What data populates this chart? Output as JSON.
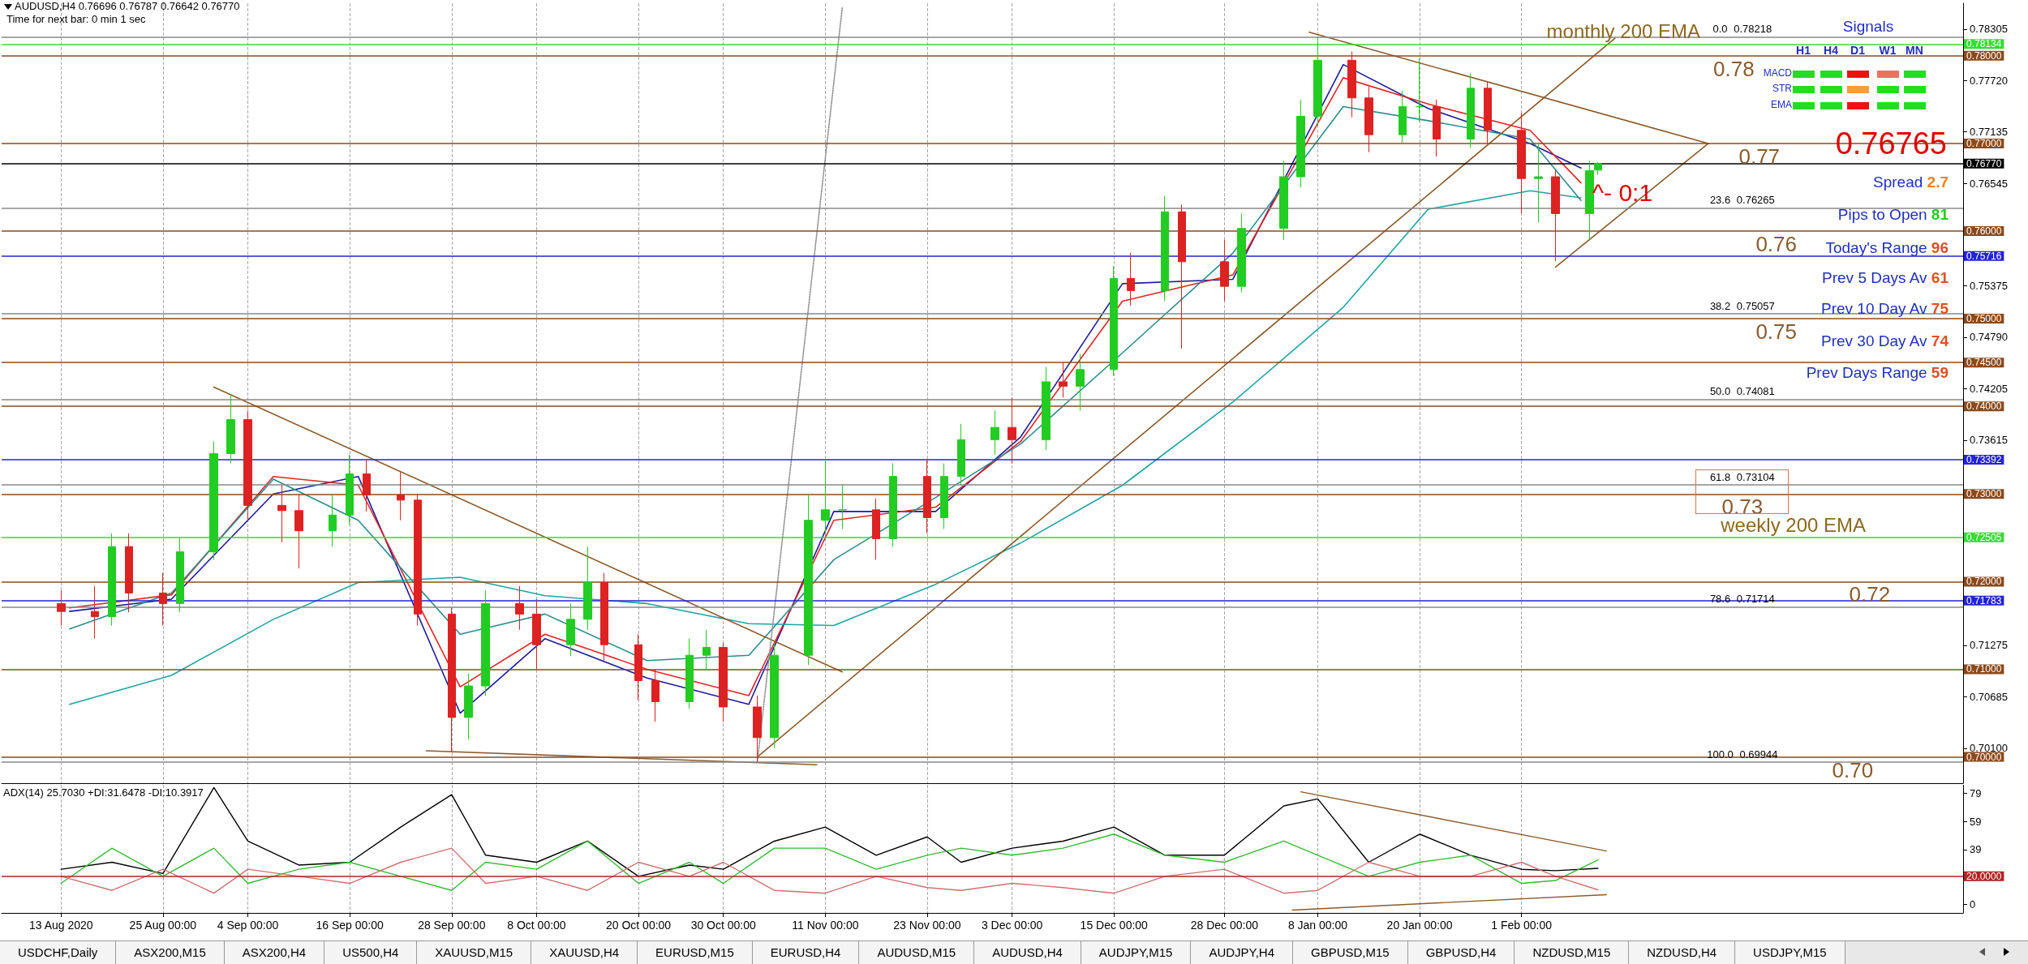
{
  "chart_data": [
    {
      "type": "candlestick",
      "title": "AUDUSD,H4  0.76696 0.76787 0.76642 0.76770",
      "x": [
        "2020-08-13",
        "2020-08-17",
        "2020-08-19",
        "2020-08-21",
        "2020-08-25",
        "2020-08-27",
        "2020-08-31",
        "2020-09-02",
        "2020-09-04",
        "2020-09-08",
        "2020-09-10",
        "2020-09-14",
        "2020-09-16",
        "2020-09-18",
        "2020-09-22",
        "2020-09-24",
        "2020-09-28",
        "2020-09-30",
        "2020-10-02",
        "2020-10-06",
        "2020-10-08",
        "2020-10-12",
        "2020-10-14",
        "2020-10-16",
        "2020-10-20",
        "2020-10-22",
        "2020-10-26",
        "2020-10-28",
        "2020-10-30",
        "2020-11-03",
        "2020-11-05",
        "2020-11-09",
        "2020-11-11",
        "2020-11-13",
        "2020-11-17",
        "2020-11-19",
        "2020-11-23",
        "2020-11-25",
        "2020-11-27",
        "2020-12-01",
        "2020-12-03",
        "2020-12-07",
        "2020-12-09",
        "2020-12-11",
        "2020-12-15",
        "2020-12-17",
        "2020-12-21",
        "2020-12-23",
        "2020-12-28",
        "2020-12-30",
        "2021-01-04",
        "2021-01-06",
        "2021-01-08",
        "2021-01-12",
        "2021-01-14",
        "2021-01-18",
        "2021-01-20",
        "2021-01-22",
        "2021-01-26",
        "2021-01-28",
        "2021-02-01",
        "2021-02-03",
        "2021-02-05",
        "2021-02-09",
        "2021-02-10"
      ],
      "ohlc": [
        [
          0.7175,
          0.719,
          0.715,
          0.7166
        ],
        [
          0.7166,
          0.7195,
          0.7135,
          0.716
        ],
        [
          0.716,
          0.7255,
          0.715,
          0.724
        ],
        [
          0.724,
          0.7255,
          0.7165,
          0.7187
        ],
        [
          0.7187,
          0.721,
          0.715,
          0.7175
        ],
        [
          0.7175,
          0.725,
          0.7165,
          0.7234
        ],
        [
          0.7234,
          0.736,
          0.7225,
          0.7346
        ],
        [
          0.7346,
          0.7413,
          0.7335,
          0.7385
        ],
        [
          0.7385,
          0.7395,
          0.727,
          0.7287
        ],
        [
          0.7287,
          0.731,
          0.7245,
          0.7281
        ],
        [
          0.7281,
          0.73,
          0.7215,
          0.7258
        ],
        [
          0.7258,
          0.73,
          0.724,
          0.7276
        ],
        [
          0.7276,
          0.7345,
          0.7265,
          0.7323
        ],
        [
          0.7323,
          0.734,
          0.728,
          0.7299
        ],
        [
          0.7299,
          0.7325,
          0.727,
          0.7293
        ],
        [
          0.7293,
          0.73,
          0.715,
          0.7163
        ],
        [
          0.7163,
          0.717,
          0.7006,
          0.7045
        ],
        [
          0.7045,
          0.7095,
          0.702,
          0.7081
        ],
        [
          0.7081,
          0.719,
          0.707,
          0.7175
        ],
        [
          0.7175,
          0.7195,
          0.7145,
          0.7163
        ],
        [
          0.7163,
          0.718,
          0.71,
          0.7128
        ],
        [
          0.7128,
          0.7175,
          0.7115,
          0.7157
        ],
        [
          0.7157,
          0.724,
          0.7145,
          0.7199
        ],
        [
          0.7199,
          0.721,
          0.711,
          0.7128
        ],
        [
          0.7128,
          0.714,
          0.7065,
          0.7087
        ],
        [
          0.7087,
          0.71,
          0.704,
          0.7063
        ],
        [
          0.7063,
          0.7135,
          0.7055,
          0.7116
        ],
        [
          0.7116,
          0.7145,
          0.71,
          0.7125
        ],
        [
          0.7125,
          0.713,
          0.704,
          0.7057
        ],
        [
          0.7057,
          0.707,
          0.69944,
          0.7022
        ],
        [
          0.7022,
          0.713,
          0.701,
          0.7116
        ],
        [
          0.7116,
          0.73,
          0.7105,
          0.727
        ],
        [
          0.727,
          0.734,
          0.7255,
          0.7282
        ],
        [
          0.7282,
          0.731,
          0.726,
          0.7282
        ],
        [
          0.7282,
          0.7295,
          0.7225,
          0.7249
        ],
        [
          0.7249,
          0.7335,
          0.724,
          0.732
        ],
        [
          0.732,
          0.734,
          0.7255,
          0.7273
        ],
        [
          0.7273,
          0.7335,
          0.726,
          0.732
        ],
        [
          0.732,
          0.738,
          0.731,
          0.7362
        ],
        [
          0.7362,
          0.7395,
          0.7345,
          0.7376
        ],
        [
          0.7376,
          0.741,
          0.7335,
          0.7362
        ],
        [
          0.7362,
          0.7445,
          0.735,
          0.7428
        ],
        [
          0.7428,
          0.745,
          0.741,
          0.7423
        ],
        [
          0.7423,
          0.746,
          0.7395,
          0.7442
        ],
        [
          0.7442,
          0.756,
          0.7435,
          0.7546
        ],
        [
          0.7546,
          0.7575,
          0.7515,
          0.7532
        ],
        [
          0.7532,
          0.764,
          0.752,
          0.7622
        ],
        [
          0.7622,
          0.763,
          0.7466,
          0.7565
        ],
        [
          0.7565,
          0.759,
          0.752,
          0.7537
        ],
        [
          0.7537,
          0.762,
          0.753,
          0.7603
        ],
        [
          0.7603,
          0.768,
          0.759,
          0.7662
        ],
        [
          0.7662,
          0.775,
          0.765,
          0.7731
        ],
        [
          0.7731,
          0.78218,
          0.772,
          0.7795
        ],
        [
          0.7795,
          0.7805,
          0.773,
          0.7752
        ],
        [
          0.7752,
          0.7765,
          0.769,
          0.771
        ],
        [
          0.771,
          0.776,
          0.77,
          0.7742
        ],
        [
          0.7742,
          0.7797,
          0.7725,
          0.7742
        ],
        [
          0.7742,
          0.775,
          0.7685,
          0.7705
        ],
        [
          0.7705,
          0.778,
          0.7695,
          0.7763
        ],
        [
          0.7763,
          0.777,
          0.77,
          0.7715
        ],
        [
          0.7715,
          0.7735,
          0.762,
          0.766
        ],
        [
          0.766,
          0.77,
          0.761,
          0.7662
        ],
        [
          0.7662,
          0.767,
          0.7566,
          0.762
        ],
        [
          0.762,
          0.768,
          0.759,
          0.7669
        ],
        [
          0.76696,
          0.76787,
          0.76642,
          0.7677
        ]
      ],
      "colors": [
        "#dd2222",
        "#dd2222",
        "#22cc22",
        "#dd2222",
        "#dd2222",
        "#22cc22",
        "#22cc22",
        "#22cc22",
        "#dd2222",
        "#dd2222",
        "#dd2222",
        "#22cc22",
        "#22cc22",
        "#dd2222",
        "#dd2222",
        "#dd2222",
        "#dd2222",
        "#22cc22",
        "#22cc22",
        "#dd2222",
        "#dd2222",
        "#22cc22",
        "#22cc22",
        "#dd2222",
        "#dd2222",
        "#dd2222",
        "#22cc22",
        "#22cc22",
        "#dd2222",
        "#dd2222",
        "#22cc22",
        "#22cc22",
        "#22cc22",
        "#22cc22",
        "#dd2222",
        "#22cc22",
        "#dd2222",
        "#22cc22",
        "#22cc22",
        "#22cc22",
        "#dd2222",
        "#22cc22",
        "#dd2222",
        "#22cc22",
        "#22cc22",
        "#dd2222",
        "#22cc22",
        "#dd2222",
        "#dd2222",
        "#22cc22",
        "#22cc22",
        "#22cc22",
        "#22cc22",
        "#dd2222",
        "#dd2222",
        "#22cc22",
        "#22cc22",
        "#dd2222",
        "#22cc22",
        "#dd2222",
        "#dd2222",
        "#22cc22",
        "#dd2222",
        "#22cc22",
        "#22cc22"
      ],
      "series": [
        {
          "type": "line",
          "color": "#1c1c9c",
          "x": [
            "2020-08-14",
            "2020-08-26",
            "2020-09-07",
            "2020-09-17",
            "2020-09-29",
            "2020-10-09",
            "2020-10-21",
            "2020-11-02",
            "2020-11-12",
            "2020-11-24",
            "2020-12-04",
            "2020-12-16",
            "2020-12-29",
            "2021-01-11",
            "2021-01-21",
            "2021-02-02",
            "2021-02-08"
          ],
          "values": [
            0.7166,
            0.718,
            0.73,
            0.732,
            0.705,
            0.7135,
            0.709,
            0.706,
            0.728,
            0.728,
            0.7365,
            0.754,
            0.7545,
            0.779,
            0.774,
            0.77,
            0.7672
          ]
        },
        {
          "type": "line",
          "color": "#e02424",
          "x": [
            "2020-08-14",
            "2020-08-26",
            "2020-09-07",
            "2020-09-17",
            "2020-09-29",
            "2020-10-09",
            "2020-10-21",
            "2020-11-02",
            "2020-11-12",
            "2020-11-24",
            "2020-12-04",
            "2020-12-16",
            "2020-12-29",
            "2021-01-11",
            "2021-01-21",
            "2021-02-02",
            "2021-02-08"
          ],
          "values": [
            0.717,
            0.7185,
            0.732,
            0.731,
            0.708,
            0.714,
            0.71,
            0.707,
            0.727,
            0.7285,
            0.736,
            0.752,
            0.755,
            0.7775,
            0.7745,
            0.7715,
            0.7655
          ]
        },
        {
          "type": "line",
          "color": "#2b8c8c",
          "x": [
            "2020-08-14",
            "2020-08-26",
            "2020-09-07",
            "2020-09-17",
            "2020-09-29",
            "2020-10-09",
            "2020-10-21",
            "2020-11-02",
            "2020-11-12",
            "2020-11-24",
            "2020-12-04",
            "2020-12-16",
            "2020-12-29",
            "2021-01-11",
            "2021-01-21",
            "2021-02-02",
            "2021-02-08"
          ],
          "values": [
            0.7146,
            0.7187,
            0.7317,
            0.727,
            0.714,
            0.7163,
            0.711,
            0.7116,
            0.7225,
            0.7296,
            0.7357,
            0.7461,
            0.7575,
            0.7742,
            0.7726,
            0.7705,
            0.7635
          ]
        },
        {
          "type": "line",
          "color": "#1fa3a3",
          "x": [
            "2020-08-14",
            "2020-08-26",
            "2020-09-07",
            "2020-09-17",
            "2020-09-29",
            "2020-10-09",
            "2020-10-21",
            "2020-11-02",
            "2020-11-12",
            "2020-11-24",
            "2020-12-04",
            "2020-12-16",
            "2020-12-29",
            "2021-01-11",
            "2021-01-21",
            "2021-02-02",
            "2021-02-08"
          ],
          "values": [
            0.706,
            0.7093,
            0.7157,
            0.7199,
            0.7205,
            0.7184,
            0.7175,
            0.7152,
            0.715,
            0.7197,
            0.7244,
            0.731,
            0.7405,
            0.7513,
            0.7625,
            0.7646,
            0.7638
          ]
        },
        {
          "type": "line",
          "color": "#8b5a2b",
          "x": [
            "2020-08-31",
            "2020-11-13"
          ],
          "values": [
            0.7422,
            0.7097
          ]
        },
        {
          "type": "line",
          "color": "#8b5a2b",
          "x": [
            "2020-09-25",
            "2020-11-10"
          ],
          "values": [
            0.7007,
            0.6991
          ]
        },
        {
          "type": "line",
          "color": "#8b5a2b",
          "x": [
            "2020-11-03",
            "2021-02-12"
          ],
          "values": [
            0.7,
            0.782
          ]
        },
        {
          "type": "line",
          "color": "#8b5a2b",
          "x": [
            "2021-01-07",
            "2021-02-23"
          ],
          "values": [
            0.7827,
            0.77
          ]
        },
        {
          "type": "line",
          "color": "#8b5a2b",
          "x": [
            "2021-02-05",
            "2021-02-23"
          ],
          "values": [
            0.7559,
            0.77
          ]
        },
        {
          "type": "line",
          "color": "#909090",
          "line_style": "dotted",
          "x": [
            "2020-11-03",
            "2020-11-13"
          ],
          "values": [
            0.69944,
            0.7855
          ]
        }
      ],
      "xlim": [
        "2020-08-06",
        "2021-03-25"
      ],
      "xticks": [
        {
          "value": "2020-08-13",
          "label": null
        },
        {
          "value": "2020-08-25",
          "label": null
        },
        {
          "value": "2020-09-04",
          "label": null
        },
        {
          "value": "2020-09-16",
          "label": null
        },
        {
          "value": "2020-09-28",
          "label": null
        },
        {
          "value": "2020-10-08",
          "label": null
        },
        {
          "value": "2020-10-20",
          "label": null
        },
        {
          "value": "2020-10-30",
          "label": null
        },
        {
          "value": "2020-11-11",
          "label": null
        },
        {
          "value": "2020-11-23",
          "label": null
        },
        {
          "value": "2020-12-03",
          "label": null
        },
        {
          "value": "2020-12-15",
          "label": null
        },
        {
          "value": "2020-12-28",
          "label": null
        },
        {
          "value": "2021-01-08",
          "label": null
        },
        {
          "value": "2021-01-20",
          "label": null
        },
        {
          "value": "2021-02-01",
          "label": null
        }
      ],
      "ylim": [
        0.697,
        0.786
      ],
      "yticks": [
        {
          "value": 0.701,
          "label": "0.70100"
        },
        {
          "value": 0.70685,
          "label": "0.70685"
        },
        {
          "value": 0.71275,
          "label": "0.71275"
        },
        {
          "value": 0.73615,
          "label": "0.73615"
        },
        {
          "value": 0.74205,
          "label": "0.74205"
        },
        {
          "value": 0.7479,
          "label": "0.74790"
        },
        {
          "value": 0.75375,
          "label": "0.75375"
        },
        {
          "value": 0.76545,
          "label": "0.76545"
        },
        {
          "value": 0.77135,
          "label": "0.77135"
        },
        {
          "value": 0.7772,
          "label": "0.77720"
        },
        {
          "value": 0.78305,
          "label": "0.78305"
        }
      ],
      "ref_lines": [
        {
          "axis": "y",
          "value": 0.78,
          "label": "0.78000",
          "color": "#8b4a1c"
        },
        {
          "axis": "y",
          "value": 0.77,
          "label": "0.77000",
          "color": "#8b4a1c"
        },
        {
          "axis": "y",
          "value": 0.76,
          "label": "0.76000",
          "color": "#8b4a1c"
        },
        {
          "axis": "y",
          "value": 0.75,
          "label": "0.75000",
          "color": "#8b4a1c"
        },
        {
          "axis": "y",
          "value": 0.745,
          "label": "0.74500",
          "color": "#8b4a1c"
        },
        {
          "axis": "y",
          "value": 0.74,
          "label": "0.74000",
          "color": "#8b4a1c"
        },
        {
          "axis": "y",
          "value": 0.73,
          "label": "0.73000",
          "color": "#8b4a1c"
        },
        {
          "axis": "y",
          "value": 0.72,
          "label": "0.72000",
          "color": "#8b4a1c"
        },
        {
          "axis": "y",
          "value": 0.71,
          "label": "0.71000",
          "color": "#8b4a1c"
        },
        {
          "axis": "y",
          "value": 0.7,
          "label": "0.70000",
          "color": "#8b4a1c"
        },
        {
          "axis": "y",
          "value": 0.75716,
          "label": "0.75716",
          "color": "#2323d6"
        },
        {
          "axis": "y",
          "value": 0.73392,
          "label": "0.73392",
          "color": "#2323d6"
        },
        {
          "axis": "y",
          "value": 0.71783,
          "label": "0.71783",
          "color": "#2323d6"
        },
        {
          "axis": "y",
          "value": 0.78134,
          "label": "0.78134",
          "color": "#33dd33"
        },
        {
          "axis": "y",
          "value": 0.72505,
          "label": "0.72505",
          "color": "#33dd33"
        },
        {
          "axis": "y",
          "value": 0.7677,
          "label": "0.76770",
          "color": "#000000"
        },
        {
          "axis": "y",
          "value": 0.78218,
          "color": "#888888"
        },
        {
          "axis": "y",
          "value": 0.76265,
          "color": "#888888"
        },
        {
          "axis": "y",
          "value": 0.75057,
          "color": "#888888"
        },
        {
          "axis": "y",
          "value": 0.74081,
          "color": "#888888"
        },
        {
          "axis": "y",
          "value": 0.73104,
          "color": "#888888"
        },
        {
          "axis": "y",
          "value": 0.71714,
          "color": "#888888"
        },
        {
          "axis": "y",
          "value": 0.69944,
          "color": "#888888"
        }
      ],
      "annotations": [
        "Time for next bar: 0 min 1 sec",
        {
          "text": "monthly 200 EMA",
          "x": "2021-02-13",
          "y": 0.78134
        },
        {
          "text": "0.78",
          "x": "2021-02-26",
          "y": 0.78
        },
        {
          "text": "0.77",
          "x": "2021-03-01",
          "y": 0.77
        },
        {
          "text": "0.76",
          "x": "2021-03-03",
          "y": 0.76
        },
        {
          "text": "0.75",
          "x": "2021-03-03",
          "y": 0.75
        },
        {
          "text": "0.73",
          "x": "2021-02-27",
          "y": 0.73
        },
        {
          "text": "weekly 200 EMA",
          "x": "2021-03-05",
          "y": 0.72505
        },
        {
          "text": "0.72",
          "x": "2021-03-14",
          "y": 0.72
        },
        {
          "text": "0.70",
          "x": "2021-03-12",
          "y": 0.7
        },
        {
          "text": "0.0 0.78218",
          "x": "2021-02-27",
          "y": 0.78218
        },
        {
          "text": "23.6 0.76265",
          "x": "2021-02-27",
          "y": 0.76265
        },
        {
          "text": "38.2 0.75057",
          "x": "2021-02-27",
          "y": 0.75057
        },
        {
          "text": "50.0 0.74081",
          "x": "2021-02-27",
          "y": 0.74081
        },
        {
          "text": "61.8 0.73104",
          "x": "2021-02-27",
          "y": 0.73104
        },
        {
          "text": "78.6 0.71714",
          "x": "2021-02-27",
          "y": 0.71714
        },
        {
          "text": "100.0 0.69944",
          "x": "2021-02-27",
          "y": 0.69944
        },
        "0.76765",
        "^- 0:1",
        "Signals",
        "H1",
        "H4",
        "D1",
        "W1",
        "MN",
        "MACD",
        "STR",
        "EMA",
        "Spread 2.7",
        "Pips to Open 81",
        "Today's Range 96",
        "Prev 5 Days Av 61",
        "Prev 10 Day Av 75",
        "Prev 30 Day Av 74",
        "Prev Days Range 59"
      ],
      "grid": "x",
      "marker": "none",
      "tick_labels": "y"
    },
    {
      "type": "line",
      "title": "ADX(14) 25.7030 +DI:31.6478 -DI:10.3917",
      "series": [
        {
          "color": "#000000",
          "x": [
            "2020-08-13",
            "2020-08-19",
            "2020-08-25",
            "2020-08-31",
            "2020-09-04",
            "2020-09-10",
            "2020-09-16",
            "2020-09-22",
            "2020-09-28",
            "2020-10-02",
            "2020-10-08",
            "2020-10-14",
            "2020-10-20",
            "2020-10-26",
            "2020-10-30",
            "2020-11-05",
            "2020-11-11",
            "2020-11-17",
            "2020-11-23",
            "2020-11-27",
            "2020-12-03",
            "2020-12-09",
            "2020-12-15",
            "2020-12-21",
            "2020-12-28",
            "2021-01-04",
            "2021-01-08",
            "2021-01-14",
            "2021-01-20",
            "2021-01-26",
            "2021-02-01",
            "2021-02-05",
            "2021-02-10"
          ],
          "values": [
            25,
            30,
            22,
            83,
            45,
            28,
            30,
            55,
            78,
            35,
            30,
            45,
            20,
            28,
            25,
            45,
            55,
            35,
            48,
            30,
            40,
            45,
            55,
            35,
            35,
            70,
            75,
            30,
            50,
            35,
            25,
            24,
            25.703
          ]
        },
        {
          "color": "#33bb33",
          "x": [
            "2020-08-13",
            "2020-08-19",
            "2020-08-25",
            "2020-08-31",
            "2020-09-04",
            "2020-09-10",
            "2020-09-16",
            "2020-09-22",
            "2020-09-28",
            "2020-10-02",
            "2020-10-08",
            "2020-10-14",
            "2020-10-20",
            "2020-10-26",
            "2020-10-30",
            "2020-11-05",
            "2020-11-11",
            "2020-11-17",
            "2020-11-23",
            "2020-11-27",
            "2020-12-03",
            "2020-12-09",
            "2020-12-15",
            "2020-12-21",
            "2020-12-28",
            "2021-01-04",
            "2021-01-08",
            "2021-01-14",
            "2021-01-20",
            "2021-01-26",
            "2021-02-01",
            "2021-02-05",
            "2021-02-10"
          ],
          "values": [
            15,
            40,
            20,
            40,
            15,
            25,
            30,
            20,
            10,
            30,
            25,
            45,
            15,
            30,
            15,
            40,
            40,
            25,
            35,
            40,
            35,
            40,
            50,
            35,
            30,
            45,
            35,
            20,
            30,
            35,
            15,
            17,
            31.6478
          ]
        },
        {
          "color": "#d07070",
          "x": [
            "2020-08-13",
            "2020-08-19",
            "2020-08-25",
            "2020-08-31",
            "2020-09-04",
            "2020-09-10",
            "2020-09-16",
            "2020-09-22",
            "2020-09-28",
            "2020-10-02",
            "2020-10-08",
            "2020-10-14",
            "2020-10-20",
            "2020-10-26",
            "2020-10-30",
            "2020-11-05",
            "2020-11-11",
            "2020-11-17",
            "2020-11-23",
            "2020-11-27",
            "2020-12-03",
            "2020-12-09",
            "2020-12-15",
            "2020-12-21",
            "2020-12-28",
            "2021-01-04",
            "2021-01-08",
            "2021-01-14",
            "2021-01-20",
            "2021-01-26",
            "2021-02-01",
            "2021-02-05",
            "2021-02-10"
          ],
          "values": [
            20,
            10,
            25,
            8,
            25,
            20,
            15,
            30,
            40,
            15,
            20,
            10,
            30,
            20,
            30,
            10,
            8,
            20,
            12,
            10,
            15,
            12,
            8,
            20,
            25,
            8,
            10,
            30,
            20,
            20,
            30,
            20,
            10.3917
          ]
        },
        {
          "color": "#8b5a2b",
          "x": [
            "2021-01-06",
            "2021-02-11"
          ],
          "values": [
            80,
            38
          ]
        },
        {
          "color": "#8b5a2b",
          "x": [
            "2021-01-05",
            "2021-02-11"
          ],
          "values": [
            -4,
            7
          ]
        }
      ],
      "xlim": [
        "2020-08-06",
        "2021-03-25"
      ],
      "xticks": [
        {
          "value": "2020-08-13",
          "label": "13 Aug 2020"
        },
        {
          "value": "2020-08-25",
          "label": "25 Aug 00:00"
        },
        {
          "value": "2020-09-04",
          "label": "4 Sep 00:00"
        },
        {
          "value": "2020-09-16",
          "label": "16 Sep 00:00"
        },
        {
          "value": "2020-09-28",
          "label": "28 Sep 00:00"
        },
        {
          "value": "2020-10-08",
          "label": "8 Oct 00:00"
        },
        {
          "value": "2020-10-20",
          "label": "20 Oct 00:00"
        },
        {
          "value": "2020-10-30",
          "label": "30 Oct 00:00"
        },
        {
          "value": "2020-11-11",
          "label": "11 Nov 00:00"
        },
        {
          "value": "2020-11-23",
          "label": "23 Nov 00:00"
        },
        {
          "value": "2020-12-03",
          "label": "3 Dec 00:00"
        },
        {
          "value": "2020-12-15",
          "label": "15 Dec 00:00"
        },
        {
          "value": "2020-12-28",
          "label": "28 Dec 00:00"
        },
        {
          "value": "2021-01-08",
          "label": "8 Jan 00:00"
        },
        {
          "value": "2021-01-20",
          "label": "20 Jan 00:00"
        },
        {
          "value": "2021-02-01",
          "label": "1 Feb 00:00"
        }
      ],
      "ylim": [
        -6,
        85
      ],
      "yticks": [
        0,
        39,
        59,
        79
      ],
      "ref_lines": [
        {
          "axis": "y",
          "value": 20,
          "label": "20.0000",
          "color": "#b22222"
        }
      ],
      "annotations": [
        "USDCHF,Daily",
        "ASX200,M15",
        "ASX200,H4",
        "US500,H4",
        "XAUUSD,M15",
        "XAUUSD,H4",
        "EURUSD,M15",
        "EURUSD,H4",
        "AUDUSD,M15",
        "AUDUSD,H4",
        "AUDJPY,M15",
        "AUDJPY,H4",
        "GBPUSD,M15",
        "GBPUSD,H4",
        "NZDUSD,M15",
        "NZDUSD,H4",
        "USDJPY,M15"
      ],
      "grid": "x",
      "marker": "none"
    }
  ]
}
